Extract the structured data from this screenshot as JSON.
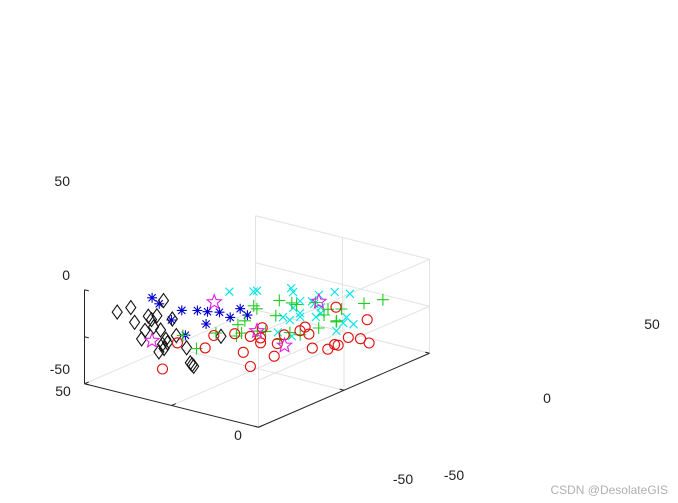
{
  "window": {
    "watermark": "CSDN @DesolateGIS"
  },
  "chart_data": {
    "type": "scatter3d",
    "title": "",
    "xlabel": "",
    "ylabel": "",
    "zlabel": "",
    "xlim": [
      -50,
      50
    ],
    "ylim": [
      -50,
      50
    ],
    "zlim": [
      -50,
      50
    ],
    "xticks": [
      "50",
      "0",
      "-50"
    ],
    "yticks": [
      "50",
      "0",
      "-50"
    ],
    "zticks": [
      "50",
      "0",
      "-50"
    ],
    "grid": true,
    "background": "#ffffff",
    "axis_color": "#262626",
    "grid_color": "#e3e3e3",
    "series": [
      {
        "marker": "asterisk",
        "color": "#0000cc",
        "points": [
          [
            21,
            -40,
            47
          ],
          [
            11,
            -46,
            50
          ],
          [
            -2,
            -46,
            49
          ],
          [
            -7,
            -42,
            48
          ],
          [
            -12,
            -42,
            36
          ],
          [
            -20,
            -36,
            42
          ],
          [
            4,
            -46,
            36
          ],
          [
            -3,
            -32,
            37
          ],
          [
            -6,
            -48,
            26
          ],
          [
            -10,
            -20,
            34
          ],
          [
            -3,
            -25,
            31
          ],
          [
            -22,
            -28,
            39
          ]
        ]
      },
      {
        "marker": "diamond",
        "color": "#111111",
        "points": [
          [
            43,
            -38,
            20
          ],
          [
            45,
            -28,
            16
          ],
          [
            33,
            -30,
            14
          ],
          [
            31,
            -27,
            13
          ],
          [
            27,
            -38,
            8
          ],
          [
            32,
            -39,
            15
          ],
          [
            15,
            -38,
            4
          ],
          [
            16,
            -39,
            -1
          ],
          [
            26,
            -34,
            9
          ],
          [
            20,
            -36,
            10
          ],
          [
            12,
            -35,
            7
          ],
          [
            29,
            -20,
            5
          ],
          [
            39,
            -15,
            16
          ],
          [
            29,
            -38,
            -2
          ],
          [
            9,
            -32,
            -7
          ],
          [
            3,
            -18,
            -3
          ],
          [
            40,
            -21,
            0
          ],
          [
            19,
            -35,
            -10
          ],
          [
            -4,
            -42,
            -11
          ],
          [
            21,
            -31,
            -8
          ],
          [
            2,
            -35,
            -21
          ],
          [
            22,
            -35,
            -15
          ],
          [
            -1,
            -40,
            -12
          ]
        ]
      },
      {
        "marker": "x",
        "color": "#00e5e5",
        "points": [
          [
            9,
            -7,
            33
          ],
          [
            2,
            0,
            31
          ],
          [
            -1,
            -1,
            34
          ],
          [
            -24,
            21,
            26
          ],
          [
            -1,
            19,
            21
          ],
          [
            -16,
            21,
            6
          ],
          [
            -10,
            9,
            -1
          ],
          [
            -24,
            32,
            -17
          ],
          [
            -18,
            34,
            -14
          ],
          [
            -11,
            14,
            3
          ],
          [
            -11,
            14,
            -1
          ],
          [
            -12,
            13,
            17
          ],
          [
            -8,
            13,
            8
          ],
          [
            -20,
            34,
            12
          ],
          [
            -24,
            10,
            8
          ],
          [
            -17,
            3,
            -10
          ],
          [
            -5,
            16,
            21
          ],
          [
            -25,
            8,
            24
          ],
          [
            -13,
            2,
            9
          ],
          [
            -25,
            21,
            -15
          ],
          [
            -24,
            26,
            -11
          ],
          [
            -17,
            20,
            1
          ],
          [
            -11,
            21,
            10
          ],
          [
            -8,
            4,
            -11
          ],
          [
            -8,
            28,
            10
          ]
        ]
      },
      {
        "marker": "plus",
        "color": "#22cc22",
        "points": [
          [
            -37,
            36,
            12
          ],
          [
            -25,
            24,
            6
          ],
          [
            -29,
            12,
            17
          ],
          [
            -20,
            0,
            29
          ],
          [
            -8,
            15,
            10
          ],
          [
            -3,
            10,
            16
          ],
          [
            -3,
            -5,
            22
          ],
          [
            2,
            2,
            11
          ],
          [
            -9,
            -9,
            1
          ],
          [
            -11,
            28,
            -10
          ],
          [
            -2,
            3,
            -12
          ],
          [
            -1,
            -10,
            -4
          ],
          [
            -18,
            28,
            -14
          ],
          [
            2,
            -22,
            4
          ],
          [
            4,
            -8,
            -11
          ],
          [
            20,
            -23,
            -6
          ],
          [
            5,
            -2,
            0
          ],
          [
            -10,
            24,
            6
          ],
          [
            9,
            -2,
            -6
          ],
          [
            -17,
            -4,
            -8
          ],
          [
            2,
            13,
            -5
          ],
          [
            -15,
            4,
            -8
          ],
          [
            -5,
            31,
            -29
          ],
          [
            -34,
            28,
            13
          ],
          [
            23,
            -12,
            -30
          ],
          [
            -15,
            10,
            -15
          ],
          [
            -30,
            16,
            2
          ]
        ]
      },
      {
        "marker": "circle",
        "color": "#e01010",
        "points": [
          [
            -10,
            15,
            -17
          ],
          [
            -5,
            -3,
            -18
          ],
          [
            5,
            21,
            -33
          ],
          [
            8,
            20,
            -43
          ],
          [
            18,
            -12,
            -27
          ],
          [
            -20,
            10,
            -12
          ],
          [
            -12,
            34,
            -6
          ],
          [
            -8,
            20,
            -18
          ],
          [
            -26,
            38,
            -16
          ],
          [
            -3,
            -7,
            -9
          ],
          [
            -4,
            -2,
            -14
          ],
          [
            1,
            -12,
            -4
          ],
          [
            -4,
            -1,
            -4
          ],
          [
            -30,
            30,
            -28
          ],
          [
            -25,
            22,
            -31
          ],
          [
            -32,
            33,
            -34
          ],
          [
            15,
            -10,
            -14
          ],
          [
            30,
            -16,
            -24
          ],
          [
            15,
            -40,
            -26
          ],
          [
            -23,
            18,
            -33
          ],
          [
            -23,
            30,
            -30
          ],
          [
            -18,
            14,
            -31
          ],
          [
            2,
            -6,
            -29
          ],
          [
            -7,
            -11,
            -36
          ],
          [
            -3,
            7,
            -41
          ],
          [
            -20,
            25,
            -35
          ]
        ]
      },
      {
        "marker": "pentagram",
        "color": "#e020e0",
        "points": [
          [
            -3,
            -28,
            44
          ],
          [
            22,
            -39,
            0
          ],
          [
            -1,
            -1,
            -9
          ],
          [
            -13,
            23,
            9
          ],
          [
            -5,
            11,
            -32
          ]
        ]
      }
    ]
  }
}
